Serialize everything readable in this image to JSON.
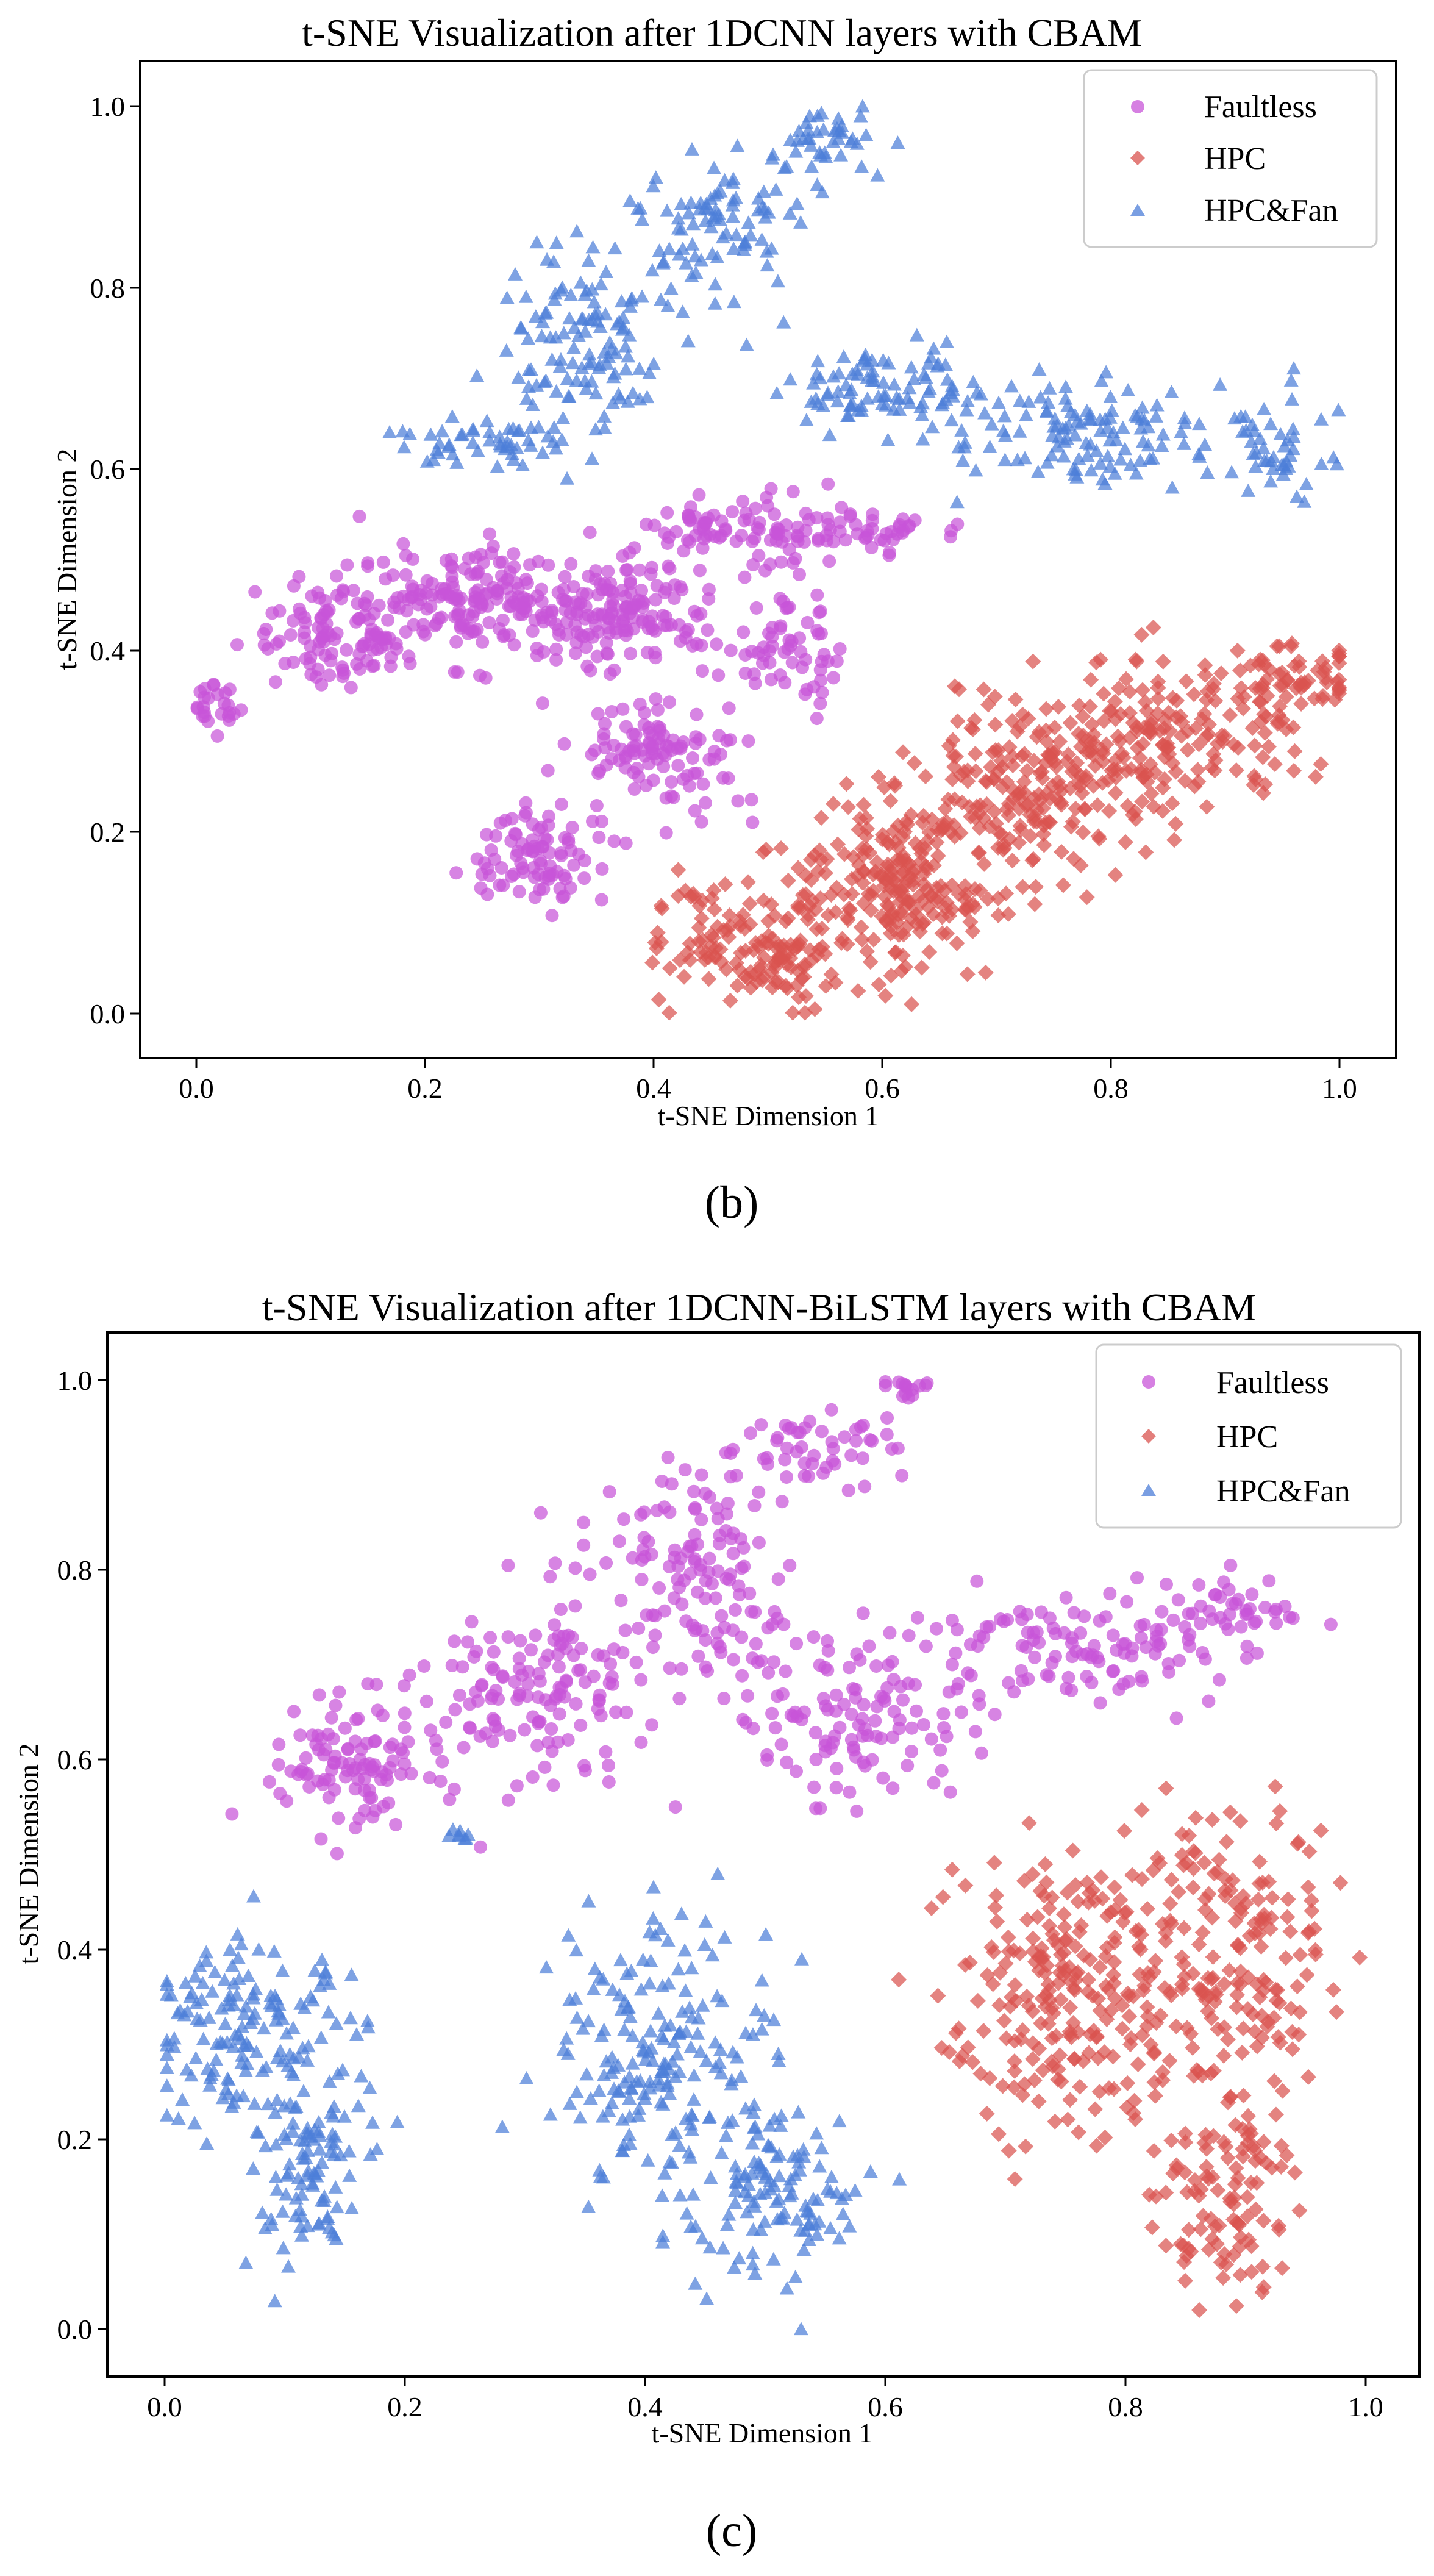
{
  "chart_data": [
    {
      "type": "scatter",
      "title": "t-SNE Visualization after 1DCNN layers with CBAM",
      "xlabel": "t-SNE Dimension 1",
      "ylabel": "t-SNE Dimension 2",
      "xlim": [
        -0.05,
        1.05
      ],
      "ylim": [
        -0.05,
        1.05
      ],
      "xticks": [
        "0.0",
        "0.2",
        "0.4",
        "0.6",
        "0.8",
        "1.0"
      ],
      "yticks": [
        "0.0",
        "0.2",
        "0.4",
        "0.6",
        "0.8",
        "1.0"
      ],
      "legend_position": "top-right",
      "caption": "(b)",
      "grid": false,
      "series": [
        {
          "name": "Faultless",
          "marker": "circle",
          "color": "#C855D8",
          "clusters": [
            {
              "center": [
                0.015,
                0.34
              ],
              "spread": [
                0.012,
                0.02
              ],
              "count": 25
            },
            {
              "center": [
                0.13,
                0.42
              ],
              "spread": [
                0.045,
                0.03
              ],
              "count": 120
            },
            {
              "center": [
                0.24,
                0.455
              ],
              "spread": [
                0.05,
                0.03
              ],
              "count": 150
            },
            {
              "center": [
                0.36,
                0.44
              ],
              "spread": [
                0.045,
                0.03
              ],
              "count": 160
            },
            {
              "center": [
                0.46,
                0.53
              ],
              "spread": [
                0.04,
                0.02
              ],
              "count": 70
            },
            {
              "center": [
                0.57,
                0.53
              ],
              "spread": [
                0.05,
                0.012
              ],
              "count": 60
            },
            {
              "center": [
                0.3,
                0.17
              ],
              "spread": [
                0.03,
                0.025
              ],
              "count": 90
            },
            {
              "center": [
                0.4,
                0.29
              ],
              "spread": [
                0.04,
                0.035
              ],
              "count": 110
            },
            {
              "center": [
                0.52,
                0.4
              ],
              "spread": [
                0.025,
                0.03
              ],
              "count": 60
            }
          ]
        },
        {
          "name": "HPC",
          "marker": "diamond",
          "color": "#D9534F",
          "clusters": [
            {
              "center": [
                0.5,
                0.07
              ],
              "spread": [
                0.05,
                0.035
              ],
              "count": 160
            },
            {
              "center": [
                0.62,
                0.15
              ],
              "spread": [
                0.05,
                0.05
              ],
              "count": 220
            },
            {
              "center": [
                0.74,
                0.25
              ],
              "spread": [
                0.05,
                0.05
              ],
              "count": 200
            },
            {
              "center": [
                0.86,
                0.31
              ],
              "spread": [
                0.05,
                0.04
              ],
              "count": 150
            },
            {
              "center": [
                0.96,
                0.37
              ],
              "spread": [
                0.03,
                0.02
              ],
              "count": 60
            }
          ]
        },
        {
          "name": "HPC&Fan",
          "marker": "triangle",
          "color": "#4C7ED8",
          "clusters": [
            {
              "center": [
                0.25,
                0.63
              ],
              "spread": [
                0.035,
                0.015
              ],
              "count": 50
            },
            {
              "center": [
                0.34,
                0.74
              ],
              "spread": [
                0.035,
                0.05
              ],
              "count": 120
            },
            {
              "center": [
                0.46,
                0.87
              ],
              "spread": [
                0.04,
                0.04
              ],
              "count": 90
            },
            {
              "center": [
                0.55,
                0.96
              ],
              "spread": [
                0.025,
                0.02
              ],
              "count": 40
            },
            {
              "center": [
                0.61,
                0.69
              ],
              "spread": [
                0.05,
                0.025
              ],
              "count": 100
            },
            {
              "center": [
                0.77,
                0.64
              ],
              "spread": [
                0.06,
                0.03
              ],
              "count": 110
            },
            {
              "center": [
                0.94,
                0.62
              ],
              "spread": [
                0.03,
                0.03
              ],
              "count": 50
            }
          ]
        }
      ]
    },
    {
      "type": "scatter",
      "title": "t-SNE Visualization after 1DCNN-BiLSTM layers with CBAM",
      "xlabel": "t-SNE Dimension 1",
      "ylabel": "t-SNE Dimension 2",
      "xlim": [
        -0.05,
        1.05
      ],
      "ylim": [
        -0.05,
        1.05
      ],
      "xticks": [
        "0.0",
        "0.2",
        "0.4",
        "0.6",
        "0.8",
        "1.0"
      ],
      "yticks": [
        "0.0",
        "0.2",
        "0.4",
        "0.6",
        "0.8",
        "1.0"
      ],
      "legend_position": "top-right",
      "caption": "(c)",
      "grid": false,
      "series": [
        {
          "name": "Faultless",
          "marker": "circle",
          "color": "#C855D8",
          "clusters": [
            {
              "center": [
                0.16,
                0.6
              ],
              "spread": [
                0.04,
                0.04
              ],
              "count": 110
            },
            {
              "center": [
                0.31,
                0.68
              ],
              "spread": [
                0.045,
                0.05
              ],
              "count": 130
            },
            {
              "center": [
                0.44,
                0.8
              ],
              "spread": [
                0.04,
                0.06
              ],
              "count": 140
            },
            {
              "center": [
                0.55,
                0.93
              ],
              "spread": [
                0.04,
                0.02
              ],
              "count": 50
            },
            {
              "center": [
                0.62,
                0.99
              ],
              "spread": [
                0.01,
                0.006
              ],
              "count": 15
            },
            {
              "center": [
                0.58,
                0.64
              ],
              "spread": [
                0.05,
                0.04
              ],
              "count": 120
            },
            {
              "center": [
                0.76,
                0.72
              ],
              "spread": [
                0.06,
                0.03
              ],
              "count": 110
            },
            {
              "center": [
                0.9,
                0.76
              ],
              "spread": [
                0.03,
                0.015
              ],
              "count": 40
            }
          ]
        },
        {
          "name": "HPC",
          "marker": "diamond",
          "color": "#D9534F",
          "clusters": [
            {
              "center": [
                0.75,
                0.35
              ],
              "spread": [
                0.05,
                0.07
              ],
              "count": 220
            },
            {
              "center": [
                0.89,
                0.4
              ],
              "spread": [
                0.05,
                0.08
              ],
              "count": 200
            },
            {
              "center": [
                0.89,
                0.13
              ],
              "spread": [
                0.03,
                0.06
              ],
              "count": 100
            }
          ]
        },
        {
          "name": "HPC&Fan",
          "marker": "triangle",
          "color": "#4C7ED8",
          "clusters": [
            {
              "center": [
                0.07,
                0.32
              ],
              "spread": [
                0.045,
                0.06
              ],
              "count": 160
            },
            {
              "center": [
                0.12,
                0.15
              ],
              "spread": [
                0.025,
                0.05
              ],
              "count": 90
            },
            {
              "center": [
                0.25,
                0.52
              ],
              "spread": [
                0.006,
                0.004
              ],
              "count": 8
            },
            {
              "center": [
                0.41,
                0.28
              ],
              "spread": [
                0.045,
                0.07
              ],
              "count": 190
            },
            {
              "center": [
                0.5,
                0.14
              ],
              "spread": [
                0.035,
                0.05
              ],
              "count": 120
            }
          ]
        }
      ]
    }
  ]
}
